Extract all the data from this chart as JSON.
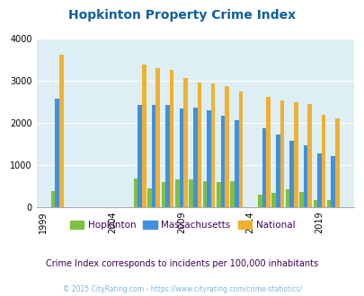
{
  "title": "Hopkinton Property Crime Index",
  "title_color": "#1060a0",
  "subtitle": "Crime Index corresponds to incidents per 100,000 inhabitants",
  "footer": "© 2025 CityRating.com - https://www.cityrating.com/crime-statistics/",
  "years": [
    2000,
    2006,
    2007,
    2008,
    2009,
    2010,
    2011,
    2012,
    2013,
    2015,
    2016,
    2017,
    2018,
    2019,
    2020
  ],
  "hopkinton": [
    390,
    690,
    450,
    600,
    660,
    650,
    610,
    600,
    610,
    300,
    330,
    420,
    370,
    160,
    170
  ],
  "massachusetts": [
    2580,
    2420,
    2420,
    2420,
    2340,
    2360,
    2290,
    2170,
    2070,
    1880,
    1720,
    1580,
    1470,
    1280,
    1210
  ],
  "national": [
    3620,
    3380,
    3300,
    3250,
    3060,
    2960,
    2940,
    2880,
    2750,
    2620,
    2520,
    2490,
    2440,
    2200,
    2100
  ],
  "hopkinton_color": "#80c040",
  "massachusetts_color": "#4090e0",
  "national_color": "#f0b030",
  "plot_bg": "#ddeef5",
  "ylim": [
    0,
    4000
  ],
  "yticks": [
    0,
    1000,
    2000,
    3000,
    4000
  ],
  "xtick_positions": [
    1999,
    2004,
    2009,
    2014,
    2019
  ],
  "xtick_labels": [
    "1999",
    "2004",
    "2009",
    "2014",
    "2019"
  ],
  "bar_width": 0.3,
  "xlim": [
    1998.5,
    2021.5
  ],
  "figsize": [
    4.06,
    3.3
  ],
  "dpi": 100
}
